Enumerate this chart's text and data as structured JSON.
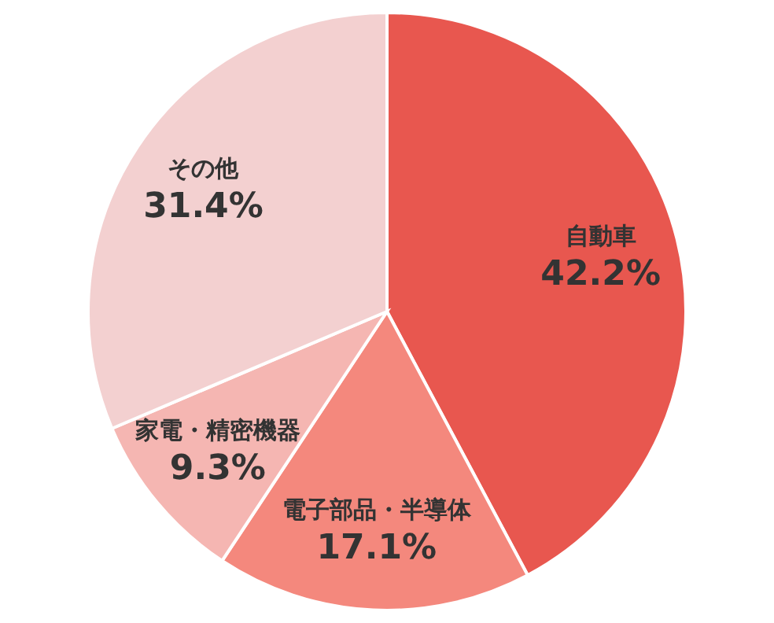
{
  "chart_data": {
    "type": "pie",
    "categories": [
      "自動車",
      "電子部品・半導体",
      "家電・精密機器",
      "その他"
    ],
    "values": [
      42.2,
      17.1,
      9.3,
      31.4
    ],
    "colors": [
      "#e8574f",
      "#f4887d",
      "#f5b6b2",
      "#f3d0d0"
    ],
    "value_labels": [
      "42.2%",
      "17.1%",
      "9.3%",
      "31.4%"
    ],
    "legend": false
  }
}
